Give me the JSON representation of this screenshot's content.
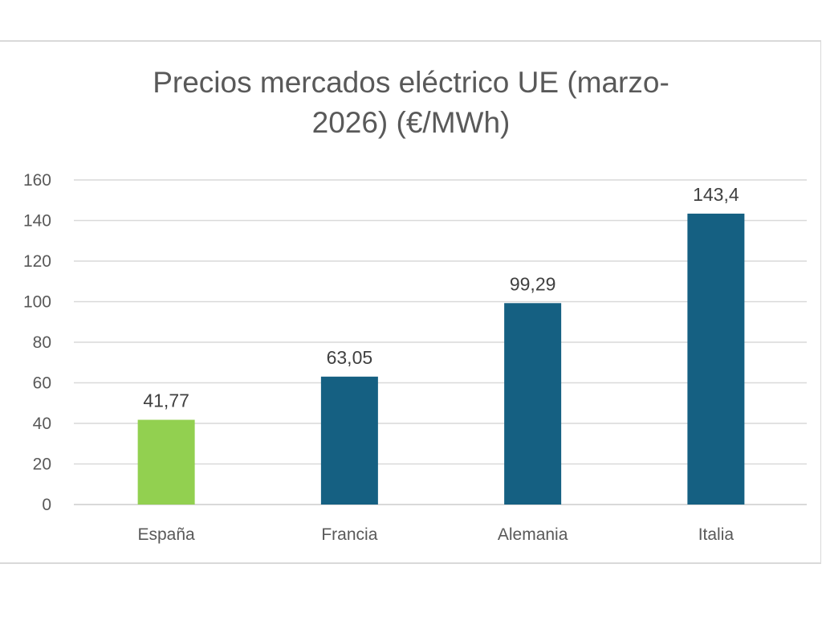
{
  "chart_data": {
    "type": "bar",
    "title_line1": "Precios mercados eléctrico UE (marzo-",
    "title_line2": "2026) (€/MWh)",
    "xlabel": "",
    "ylabel": "",
    "categories": [
      "España",
      "Francia",
      "Alemania",
      "Italia"
    ],
    "values": [
      41.77,
      63.05,
      99.29,
      143.4
    ],
    "data_labels": [
      "41,77",
      "63,05",
      "99,29",
      "143,4"
    ],
    "bar_colors": [
      "#92d050",
      "#156082",
      "#156082",
      "#156082"
    ],
    "ylim": [
      0,
      160
    ],
    "yticks": [
      0,
      20,
      40,
      60,
      80,
      100,
      120,
      140,
      160
    ],
    "ytick_labels": [
      "0",
      "20",
      "40",
      "60",
      "80",
      "100",
      "120",
      "140",
      "160"
    ],
    "grid": true,
    "legend": "none",
    "colors": {
      "highlight": "#92d050",
      "bar": "#156082",
      "grid": "#d9d9d9",
      "axis_text": "#595959"
    }
  }
}
